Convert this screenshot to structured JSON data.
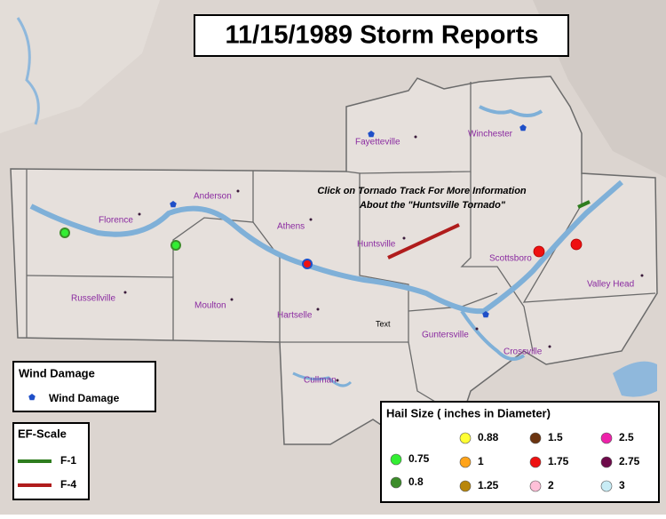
{
  "title": "11/15/1989 Storm Reports",
  "towns": [
    "Fayetteville",
    "Winchester",
    "Anderson",
    "Florence",
    "Athens",
    "Huntsville",
    "Scottsboro",
    "Russellville",
    "Moulton",
    "Hartselle",
    "Valley Head",
    "Guntersville",
    "Crossville",
    "Cullman",
    "Text"
  ],
  "annotation": [
    "Click on Tornado Track For More Information",
    "About the \"Huntsville Tornado\""
  ],
  "wind_legend": {
    "title": "Wind Damage",
    "item": "Wind Damage",
    "color": "#1f4fc8"
  },
  "ef_legend": {
    "title": "EF-Scale",
    "items": [
      {
        "label": "F-1",
        "color": "#2e7d1e"
      },
      {
        "label": "F-4",
        "color": "#b01c1c"
      }
    ]
  },
  "hail_legend": {
    "title": "Hail Size ( inches in Diameter)",
    "items": [
      {
        "label": "0.75",
        "color": "#33ee33"
      },
      {
        "label": "0.8",
        "color": "#3c8c2a"
      },
      {
        "label": "0.88",
        "color": "#ffff33"
      },
      {
        "label": "1",
        "color": "#ffa31a"
      },
      {
        "label": "1.25",
        "color": "#b8860b"
      },
      {
        "label": "1.5",
        "color": "#6b3410"
      },
      {
        "label": "1.75",
        "color": "#ee1111"
      },
      {
        "label": "2",
        "color": "#ffc0d8"
      },
      {
        "label": "2.5",
        "color": "#ee22aa"
      },
      {
        "label": "2.75",
        "color": "#6e0a4a"
      },
      {
        "label": "3",
        "color": "#c8ecf5"
      }
    ]
  }
}
